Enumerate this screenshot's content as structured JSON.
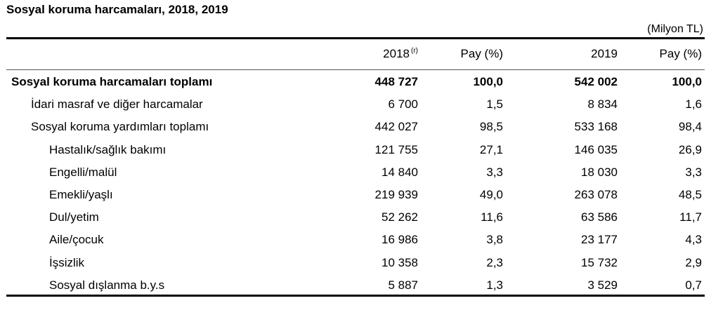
{
  "title": "Sosyal koruma harcamaları, 2018, 2019",
  "unit": "(Milyon TL)",
  "header": {
    "col1": "2018",
    "col1_note": "(r)",
    "col2": "Pay (%)",
    "col3": "2019",
    "col4": "Pay (%)"
  },
  "rows": [
    {
      "label": "Sosyal koruma harcamaları toplamı",
      "v2018": "448 727",
      "p2018": "100,0",
      "v2019": "542 002",
      "p2019": "100,0",
      "bold": true,
      "level": 0
    },
    {
      "label": "İdari masraf ve diğer harcamalar",
      "v2018": "6 700",
      "p2018": "1,5",
      "v2019": "8 834",
      "p2019": "1,6",
      "bold": false,
      "level": 1
    },
    {
      "label": "Sosyal koruma yardımları toplamı",
      "v2018": "442 027",
      "p2018": "98,5",
      "v2019": "533 168",
      "p2019": "98,4",
      "bold": false,
      "level": 1
    },
    {
      "label": "Hastalık/sağlık bakımı",
      "v2018": "121 755",
      "p2018": "27,1",
      "v2019": "146 035",
      "p2019": "26,9",
      "bold": false,
      "level": 2
    },
    {
      "label": "Engelli/malül",
      "v2018": "14 840",
      "p2018": "3,3",
      "v2019": "18 030",
      "p2019": "3,3",
      "bold": false,
      "level": 2
    },
    {
      "label": "Emekli/yaşlı",
      "v2018": "219 939",
      "p2018": "49,0",
      "v2019": "263 078",
      "p2019": "48,5",
      "bold": false,
      "level": 2
    },
    {
      "label": "Dul/yetim",
      "v2018": "52 262",
      "p2018": "11,6",
      "v2019": "63 586",
      "p2019": "11,7",
      "bold": false,
      "level": 2
    },
    {
      "label": "Aile/çocuk",
      "v2018": "16 986",
      "p2018": "3,8",
      "v2019": "23 177",
      "p2019": "4,3",
      "bold": false,
      "level": 2
    },
    {
      "label": "İşsizlik",
      "v2018": "10 358",
      "p2018": "2,3",
      "v2019": "15 732",
      "p2019": "2,9",
      "bold": false,
      "level": 2
    },
    {
      "label": "Sosyal dışlanma b.y.s",
      "v2018": "5 887",
      "p2018": "1,3",
      "v2019": "3 529",
      "p2019": "0,7",
      "bold": false,
      "level": 2
    }
  ]
}
